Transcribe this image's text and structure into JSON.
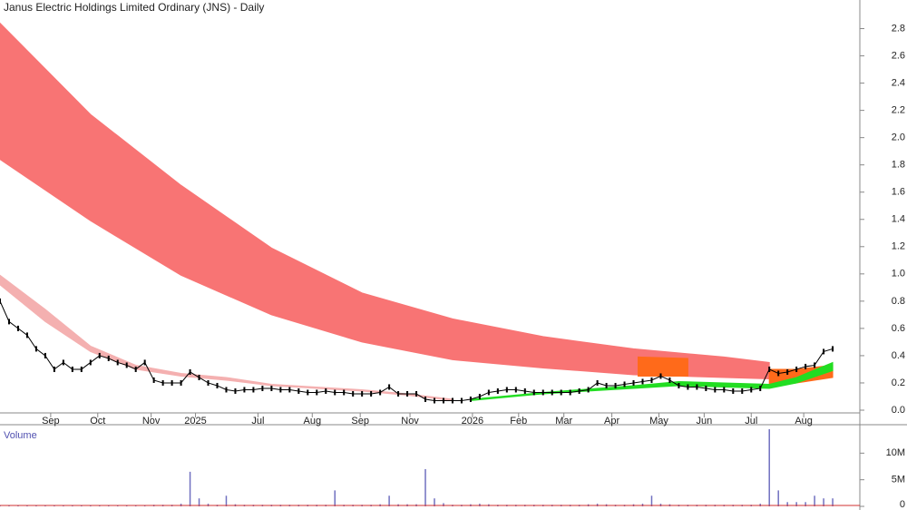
{
  "chart_data": {
    "type": "stock",
    "title": "Janus Electric Holdings Limited Ordinary (JNS) - Daily",
    "xlim": [
      0,
      95
    ],
    "xticks": [
      {
        "value": 5.6,
        "label": "Sep"
      },
      {
        "value": 10.8,
        "label": "Oct"
      },
      {
        "value": 16.7,
        "label": "Nov"
      },
      {
        "value": 21.6,
        "label": "2025"
      },
      {
        "value": 28.5,
        "label": "Jul"
      },
      {
        "value": 34.5,
        "label": "Aug"
      },
      {
        "value": 39.8,
        "label": "Sep"
      },
      {
        "value": 45.3,
        "label": "Nov"
      },
      {
        "value": 52.2,
        "label": "2026"
      },
      {
        "value": 57.3,
        "label": "Feb"
      },
      {
        "value": 62.3,
        "label": "Mar"
      },
      {
        "value": 67.6,
        "label": "Apr"
      },
      {
        "value": 72.8,
        "label": "May"
      },
      {
        "value": 77.8,
        "label": "Jun"
      },
      {
        "value": 83,
        "label": "Jul"
      },
      {
        "value": 88.8,
        "label": "Aug"
      }
    ],
    "ylim": [
      0,
      2.95
    ],
    "yticks": [
      {
        "value": 0,
        "label": "0.0"
      },
      0.2,
      0.4,
      0.6,
      0.8,
      {
        "value": 1,
        "label": "1.0"
      },
      1.2,
      1.4,
      1.6,
      1.8,
      {
        "value": 2,
        "label": "2.0"
      },
      2.2,
      2.4,
      2.6,
      2.8
    ],
    "price": {
      "color": "#000000",
      "values": [
        0.8,
        0.65,
        0.6,
        0.55,
        0.45,
        0.4,
        0.3,
        0.35,
        0.3,
        0.3,
        0.35,
        0.4,
        0.38,
        0.35,
        0.33,
        0.3,
        0.35,
        0.22,
        0.2,
        0.2,
        0.2,
        0.28,
        0.24,
        0.2,
        0.18,
        0.15,
        0.14,
        0.15,
        0.15,
        0.16,
        0.16,
        0.15,
        0.15,
        0.14,
        0.13,
        0.13,
        0.14,
        0.13,
        0.13,
        0.12,
        0.12,
        0.12,
        0.13,
        0.17,
        0.12,
        0.12,
        0.12,
        0.08,
        0.07,
        0.07,
        0.07,
        0.07,
        0.08,
        0.1,
        0.13,
        0.14,
        0.15,
        0.15,
        0.14,
        0.13,
        0.13,
        0.13,
        0.13,
        0.13,
        0.14,
        0.15,
        0.2,
        0.18,
        0.18,
        0.19,
        0.2,
        0.21,
        0.22,
        0.25,
        0.22,
        0.18,
        0.17,
        0.17,
        0.16,
        0.15,
        0.15,
        0.14,
        0.14,
        0.15,
        0.16,
        0.3,
        0.27,
        0.28,
        0.3,
        0.32,
        0.33,
        0.43,
        0.45
      ]
    },
    "bands": [
      {
        "color": "#f87474",
        "x": [
          0,
          10,
          20,
          30,
          40,
          50,
          60,
          70,
          80,
          85
        ],
        "upper": [
          2.84,
          2.17,
          1.65,
          1.19,
          0.86,
          0.67,
          0.54,
          0.45,
          0.39,
          0.35
        ],
        "lower": [
          1.84,
          1.39,
          0.99,
          0.7,
          0.5,
          0.37,
          0.31,
          0.26,
          0.24,
          0.23
        ]
      },
      {
        "color": "#f4b0b0",
        "x": [
          0,
          5,
          10,
          15,
          20,
          25,
          30,
          40,
          45,
          50
        ],
        "upper": [
          0.99,
          0.74,
          0.47,
          0.33,
          0.27,
          0.24,
          0.19,
          0.15,
          0.12,
          0.08
        ],
        "lower": [
          0.92,
          0.65,
          0.43,
          0.3,
          0.25,
          0.22,
          0.18,
          0.14,
          0.11,
          0.07
        ]
      },
      {
        "color": "#ff6a1a",
        "x": [
          70.5,
          76
        ],
        "upper": [
          0.39,
          0.38
        ],
        "lower": [
          0.25,
          0.25
        ]
      },
      {
        "color": "#ff6a1a",
        "x": [
          85,
          88,
          92
        ],
        "upper": [
          0.3,
          0.3,
          0.33
        ],
        "lower": [
          0.17,
          0.2,
          0.24
        ]
      },
      {
        "color": "#22dd22",
        "x": [
          52,
          60,
          70,
          75,
          85,
          88,
          92
        ],
        "upper": [
          0.08,
          0.13,
          0.18,
          0.21,
          0.19,
          0.24,
          0.35
        ],
        "lower": [
          0.07,
          0.12,
          0.16,
          0.18,
          0.16,
          0.2,
          0.29
        ]
      }
    ],
    "volume": {
      "title": "Volume",
      "color": "#7070c0",
      "ylim": [
        0,
        15000000
      ],
      "yticks": [
        {
          "value": 0,
          "label": "0"
        },
        {
          "value": 5000000,
          "label": "5M"
        },
        {
          "value": 10000000,
          "label": "10M"
        }
      ],
      "values": [
        200000,
        200000,
        200000,
        200000,
        200000,
        200000,
        200000,
        200000,
        200000,
        200000,
        200000,
        200000,
        200000,
        200000,
        200000,
        200000,
        200000,
        300000,
        300000,
        300000,
        500000,
        6500000,
        1500000,
        500000,
        300000,
        2000000,
        400000,
        300000,
        300000,
        300000,
        300000,
        300000,
        300000,
        300000,
        300000,
        300000,
        300000,
        3000000,
        300000,
        300000,
        300000,
        300000,
        400000,
        2000000,
        400000,
        400000,
        400000,
        7000000,
        1500000,
        600000,
        300000,
        300000,
        400000,
        500000,
        400000,
        300000,
        300000,
        300000,
        300000,
        300000,
        300000,
        300000,
        300000,
        300000,
        300000,
        400000,
        500000,
        400000,
        300000,
        300000,
        400000,
        500000,
        2000000,
        500000,
        400000,
        300000,
        300000,
        300000,
        300000,
        300000,
        300000,
        300000,
        300000,
        300000,
        500000,
        14500000,
        3000000,
        800000,
        800000,
        800000,
        2000000,
        1500000,
        1500000
      ]
    }
  }
}
